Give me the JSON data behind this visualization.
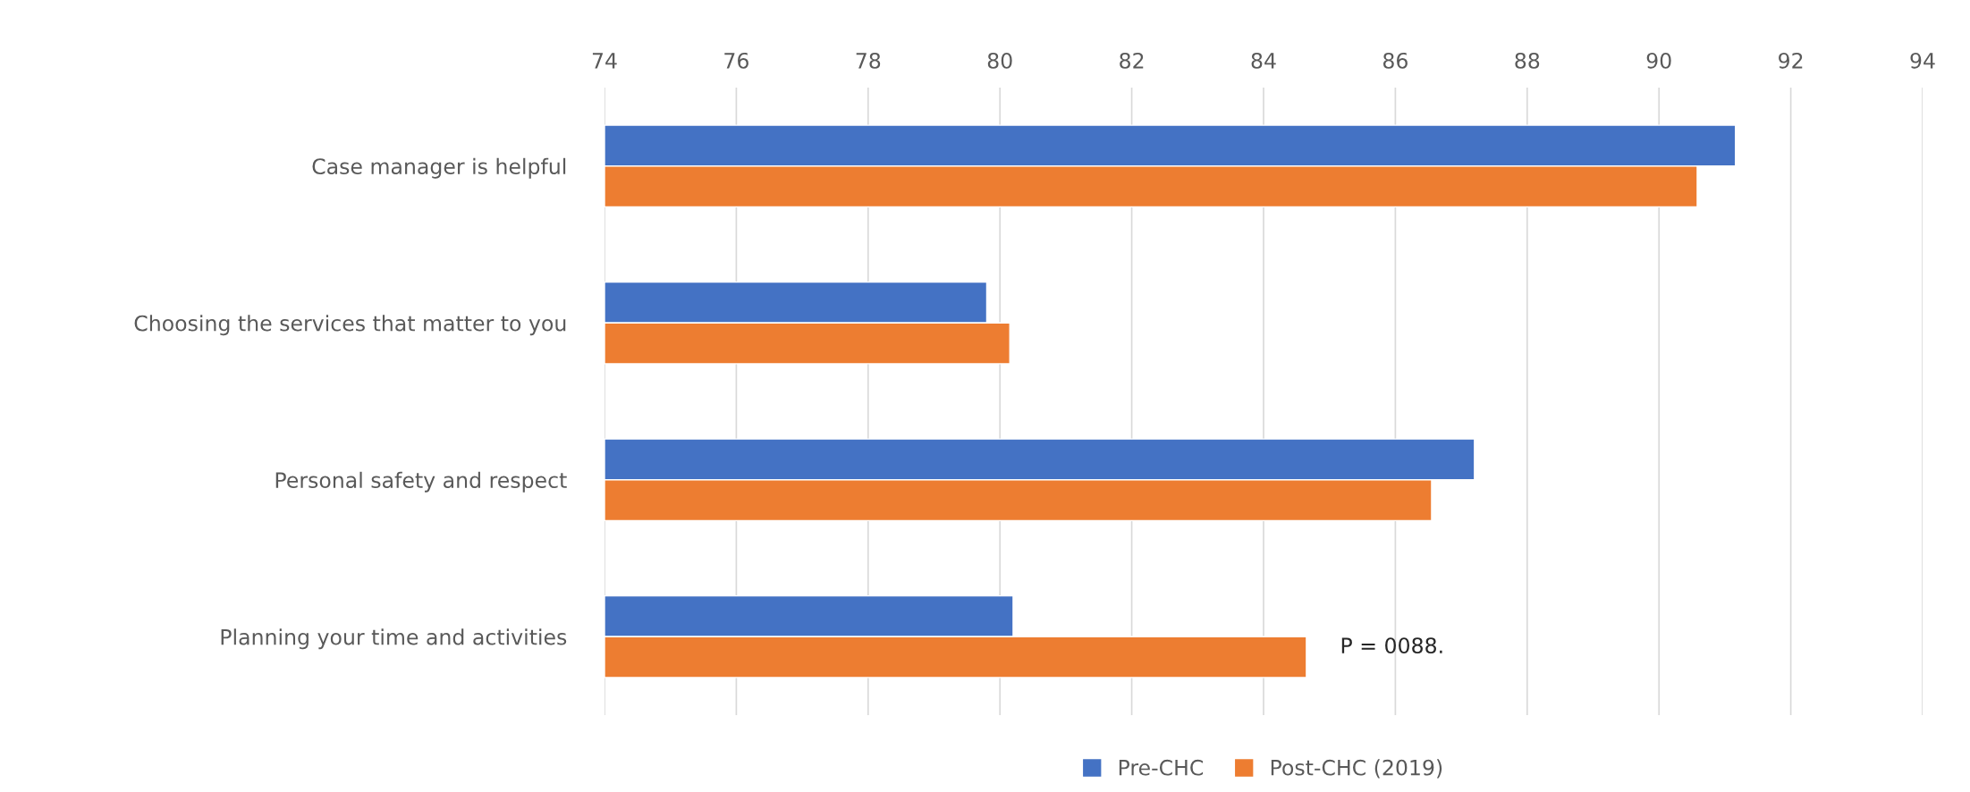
{
  "chart_data": {
    "type": "bar",
    "orientation": "horizontal",
    "categories": [
      "Case manager is helpful",
      "Choosing the services that matter to you",
      "Personal safety and respect",
      "Planning your time and activities"
    ],
    "series": [
      {
        "name": "Pre-CHC",
        "color": "#4472c4",
        "values": [
          91.16,
          79.8,
          87.2,
          80.2
        ]
      },
      {
        "name": "Post-CHC (2019)",
        "color": "#ed7d31",
        "values": [
          90.58,
          80.15,
          86.55,
          84.65
        ]
      }
    ],
    "xlim": [
      74,
      94
    ],
    "xticks": [
      74,
      76,
      78,
      80,
      82,
      84,
      86,
      88,
      90,
      92,
      94
    ],
    "grid": "x",
    "legend": "bottom",
    "annotations": [
      "P = 0088."
    ]
  }
}
